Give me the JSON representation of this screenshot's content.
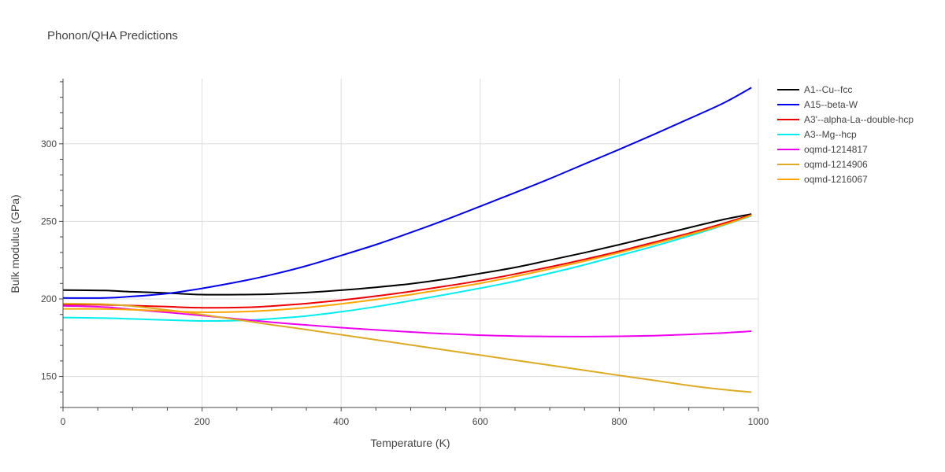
{
  "chart_data": {
    "type": "line",
    "title": "Phonon/QHA Predictions",
    "xlabel": "Temperature (K)",
    "ylabel": "Bulk modulus (GPa)",
    "xlim": [
      0,
      1000
    ],
    "ylim": [
      130,
      342
    ],
    "xticks": [
      0,
      200,
      400,
      600,
      800,
      1000
    ],
    "yticks": [
      150,
      200,
      250,
      300
    ],
    "grid": true,
    "legend_position": "top-right",
    "x": [
      0,
      60,
      100,
      150,
      200,
      260,
      300,
      350,
      400,
      450,
      500,
      550,
      600,
      650,
      700,
      750,
      800,
      850,
      900,
      950,
      990
    ],
    "series": [
      {
        "name": "A1--Cu--fcc",
        "color": "#000000",
        "values": [
          205.7,
          205.4,
          204.6,
          203.8,
          202.8,
          202.8,
          203.1,
          204.1,
          205.6,
          207.5,
          209.8,
          212.8,
          216.4,
          220.3,
          225.0,
          229.8,
          235.0,
          240.4,
          245.9,
          251.2,
          254.7
        ]
      },
      {
        "name": "A15--beta-W",
        "color": "#0000ee",
        "values": [
          200.6,
          200.6,
          201.6,
          203.5,
          206.8,
          211.7,
          215.6,
          221.3,
          228.0,
          235.0,
          242.8,
          251.0,
          259.7,
          268.5,
          277.5,
          287.0,
          296.4,
          306.1,
          316.1,
          326.3,
          336.2
        ]
      },
      {
        "name": "A3'--alpha-La--double-hcp",
        "color": "#ee0000",
        "values": [
          196.4,
          196.2,
          195.7,
          195.0,
          194.3,
          194.5,
          195.4,
          197.0,
          199.2,
          201.8,
          204.8,
          208.2,
          211.8,
          216.0,
          220.6,
          225.5,
          230.8,
          236.5,
          242.3,
          248.7,
          254.2
        ]
      },
      {
        "name": "A3--Mg--hcp",
        "color": "#00eeee",
        "values": [
          188.0,
          187.6,
          187.1,
          186.4,
          185.8,
          186.2,
          187.2,
          189.0,
          191.7,
          195.0,
          198.8,
          202.8,
          206.9,
          211.4,
          216.5,
          222.0,
          228.0,
          234.0,
          240.5,
          247.5,
          253.6
        ]
      },
      {
        "name": "oqmd-1214817",
        "color": "#ee00ee",
        "values": [
          195.6,
          194.7,
          193.2,
          191.3,
          189.3,
          186.7,
          185.0,
          183.2,
          181.5,
          180.0,
          178.7,
          177.5,
          176.6,
          176.0,
          175.8,
          175.7,
          175.9,
          176.3,
          177.1,
          178.1,
          179.2
        ]
      },
      {
        "name": "oqmd-1214906",
        "color": "#ddaa22",
        "values": [
          197.0,
          196.6,
          195.3,
          192.9,
          189.9,
          186.0,
          183.3,
          180.2,
          176.9,
          173.6,
          170.3,
          167.0,
          163.8,
          160.5,
          157.3,
          154.0,
          150.7,
          147.5,
          144.2,
          141.5,
          139.9
        ]
      },
      {
        "name": "oqmd-1216067",
        "color": "#ffa500",
        "values": [
          193.6,
          193.5,
          193.0,
          192.2,
          191.4,
          191.8,
          192.7,
          194.4,
          196.8,
          199.6,
          202.8,
          206.4,
          210.1,
          214.5,
          219.3,
          224.4,
          229.8,
          235.5,
          241.5,
          247.8,
          253.9
        ]
      }
    ]
  }
}
